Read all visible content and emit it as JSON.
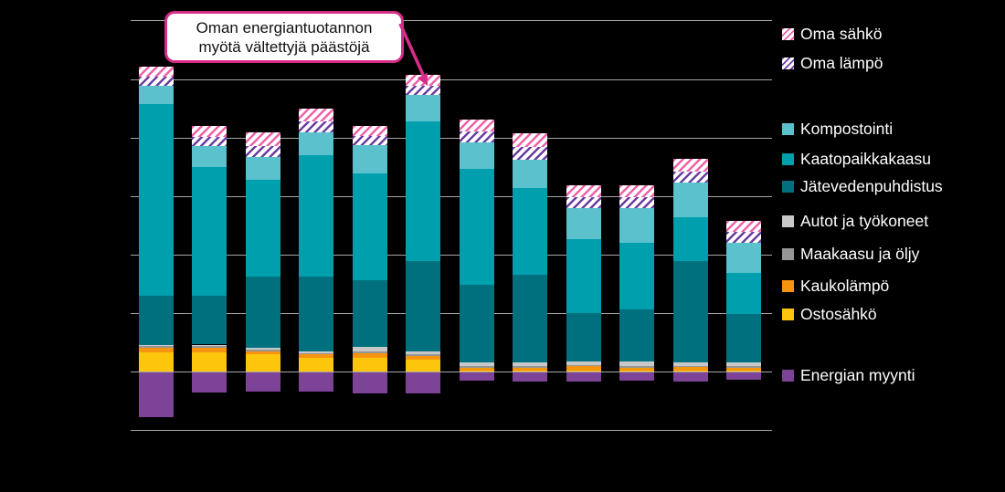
{
  "app": {
    "background_color": "#000000",
    "grid_color": "#a6a6a6",
    "legend_text_color": "#ffffff"
  },
  "callout": {
    "line1": "Oman energiantuotannon",
    "line2": "myötä vältettyjä päästöjä",
    "border_color": "#d62d87",
    "arrow_color": "#d62d87"
  },
  "legend": {
    "items": [
      {
        "id": "oma_sahko",
        "label": "Oma sähkö",
        "swatch": "hatch",
        "color": "#f061a8"
      },
      {
        "id": "oma_lampo",
        "label": "Oma lämpö",
        "swatch": "hatch",
        "color": "#6c3d9e"
      },
      {
        "id": "kompostointi",
        "label": "Kompostointi",
        "swatch": "solid",
        "color": "#5bc1cc"
      },
      {
        "id": "kaatopaikkakaasu",
        "label": "Kaatopaikkakaasu",
        "swatch": "solid",
        "color": "#009fae"
      },
      {
        "id": "jatevedenpuhdistus",
        "label": "Jätevedenpuhdistus",
        "swatch": "solid",
        "color": "#00707e"
      },
      {
        "id": "autot_ja_tyokoneet",
        "label": "Autot ja työkoneet",
        "swatch": "solid",
        "color": "#c8c8c8"
      },
      {
        "id": "maakaasu_ja_oljy",
        "label": "Maakaasu ja öljy",
        "swatch": "solid",
        "color": "#969696"
      },
      {
        "id": "kaukolampo",
        "label": "Kaukolämpö",
        "swatch": "solid",
        "color": "#f7940f"
      },
      {
        "id": "ostosahko",
        "label": "Ostosähkö",
        "swatch": "solid",
        "color": "#fdc50c"
      },
      {
        "id": "energian_myynti",
        "label": "Energian myynti",
        "swatch": "solid",
        "color": "#7d4397"
      }
    ]
  },
  "chart_data": {
    "type": "bar",
    "stacked": true,
    "n_bars": 12,
    "x_tick_labels_visible": false,
    "y_tick_labels_visible": false,
    "value_unit": "gridline units (no numeric axis labels are rendered in the image; 1 unit = one gridline interval)",
    "ylim": [
      -1,
      6
    ],
    "gridline_values": [
      6,
      5,
      4,
      3,
      2,
      1,
      0,
      -1
    ],
    "zero_line": true,
    "legend_position": "right",
    "annotation": "Oman energiantuotannon myötä vältettyjä päästöjä (arrow points to hatched top of bar 6)",
    "series": [
      {
        "id": "oma_sahko",
        "name": "Oma sähkö",
        "pattern": "hatch",
        "values": [
          0.17,
          0.18,
          0.22,
          0.22,
          0.17,
          0.18,
          0.2,
          0.23,
          0.2,
          0.2,
          0.21,
          0.19
        ]
      },
      {
        "id": "oma_lampo",
        "name": "Oma lämpö",
        "pattern": "hatch",
        "values": [
          0.16,
          0.16,
          0.2,
          0.2,
          0.16,
          0.16,
          0.19,
          0.22,
          0.19,
          0.19,
          0.19,
          0.18
        ]
      },
      {
        "id": "kompostointi",
        "name": "Kompostointi",
        "pattern": "solid",
        "values": [
          0.31,
          0.36,
          0.39,
          0.39,
          0.48,
          0.45,
          0.45,
          0.48,
          0.53,
          0.59,
          0.59,
          0.51
        ]
      },
      {
        "id": "kaatopaikkakaasu",
        "name": "Kaatopaikkakaasu",
        "pattern": "solid",
        "values": [
          3.27,
          2.2,
          1.64,
          2.06,
          1.83,
          2.39,
          1.98,
          1.48,
          1.26,
          1.14,
          0.76,
          0.7
        ]
      },
      {
        "id": "jatevedenpuhdistus",
        "name": "Jätevedenpuhdistus",
        "pattern": "solid",
        "values": [
          0.84,
          0.83,
          1.23,
          1.29,
          1.14,
          1.54,
          1.33,
          1.51,
          0.83,
          0.89,
          1.72,
          0.83
        ]
      },
      {
        "id": "autot_ja_tyokoneet",
        "name": "Autot ja työkoneet",
        "pattern": "solid",
        "values": [
          0.03,
          0.03,
          0.03,
          0.03,
          0.08,
          0.06,
          0.06,
          0.06,
          0.06,
          0.08,
          0.06,
          0.07
        ]
      },
      {
        "id": "maakaasu_ja_oljy",
        "name": "Maakaasu ja öljy",
        "pattern": "solid",
        "values": [
          0.02,
          0.02,
          0.02,
          0.02,
          0.03,
          0.03,
          0.03,
          0.03,
          0.02,
          0.02,
          0.02,
          0.02
        ]
      },
      {
        "id": "kaukolampo",
        "name": "Kaukolämpö",
        "pattern": "solid",
        "values": [
          0.09,
          0.09,
          0.06,
          0.05,
          0.08,
          0.05,
          0.05,
          0.05,
          0.08,
          0.06,
          0.07,
          0.06
        ]
      },
      {
        "id": "ostosahko",
        "name": "Ostosähkö",
        "pattern": "solid",
        "values": [
          0.32,
          0.32,
          0.29,
          0.24,
          0.23,
          0.21,
          0.01,
          0.01,
          0.01,
          0.01,
          0.01,
          0.01
        ]
      },
      {
        "id": "energian_myynti",
        "name": "Energian myynti",
        "pattern": "solid",
        "values": [
          -0.77,
          -0.35,
          -0.33,
          -0.32,
          -0.36,
          -0.36,
          -0.14,
          -0.15,
          -0.16,
          -0.14,
          -0.15,
          -0.12
        ]
      }
    ]
  }
}
